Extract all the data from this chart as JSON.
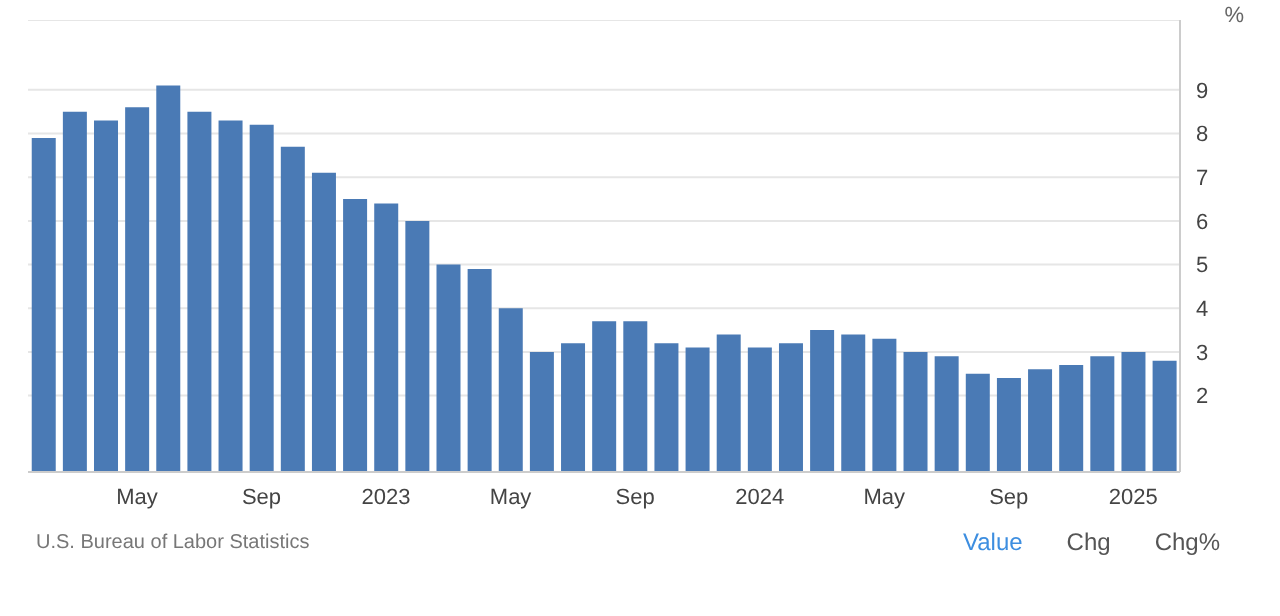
{
  "chart_data": {
    "type": "bar",
    "ylabel": "%",
    "categories": [
      null,
      null,
      null,
      "May",
      null,
      null,
      null,
      "Sep",
      null,
      null,
      null,
      "2023",
      null,
      null,
      null,
      "May",
      null,
      null,
      null,
      "Sep",
      null,
      null,
      null,
      "2024",
      null,
      null,
      null,
      "May",
      null,
      null,
      null,
      "Sep",
      null,
      null,
      null,
      "2025",
      null
    ],
    "values": [
      7.9,
      8.5,
      8.3,
      8.6,
      9.1,
      8.5,
      8.3,
      8.2,
      7.7,
      7.1,
      6.5,
      6.4,
      6.0,
      5.0,
      4.9,
      4.0,
      3.0,
      3.2,
      3.7,
      3.7,
      3.2,
      3.1,
      3.4,
      3.1,
      3.2,
      3.5,
      3.4,
      3.3,
      3.0,
      2.9,
      2.5,
      2.4,
      2.6,
      2.7,
      2.9,
      3.0,
      2.8
    ],
    "color": "#4a7ab5",
    "ylim": [
      0.25,
      10.6
    ],
    "yticks": [
      2,
      3,
      4,
      5,
      6,
      7,
      8,
      9
    ],
    "grid": "y",
    "annotations": [
      "U.S. Bureau of Labor Statistics",
      "Value",
      "Chg",
      "Chg%"
    ]
  }
}
